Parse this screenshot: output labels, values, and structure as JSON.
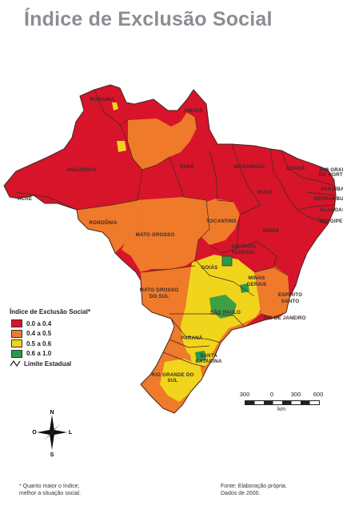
{
  "title": "Índice de Exclusão Social",
  "colors": {
    "c1": "#d7142a",
    "c2": "#ef7a2a",
    "c3": "#f0d51c",
    "c4": "#2a9a4a",
    "border": "#3d2a20",
    "title": "#8a8e93"
  },
  "legend": {
    "title": "Índice de Exclusão Social*",
    "items": [
      {
        "label": "0.0 a 0.4",
        "color": "#d7142a"
      },
      {
        "label": "0.4 a 0.5",
        "color": "#ef7a2a"
      },
      {
        "label": "0.5 a 0.6",
        "color": "#f0d51c"
      },
      {
        "label": "0.6 a 1.0",
        "color": "#2a9a4a"
      }
    ],
    "boundary_label": "Limite Estadual"
  },
  "states": [
    {
      "name": "RORAIMA"
    },
    {
      "name": "AMAPÁ"
    },
    {
      "name": "AMAZONAS"
    },
    {
      "name": "PARÁ"
    },
    {
      "name": "MARANHÃO"
    },
    {
      "name": "CEARÁ"
    },
    {
      "name": "RIO GRANDE DO NORTE"
    },
    {
      "name": "PARAÍBA"
    },
    {
      "name": "PERNAMBUCO"
    },
    {
      "name": "ALAGOAS"
    },
    {
      "name": "SERGIPE"
    },
    {
      "name": "PIAUÍ"
    },
    {
      "name": "ACRE"
    },
    {
      "name": "RONDÔNIA"
    },
    {
      "name": "TOCANTINS"
    },
    {
      "name": "BAHIA"
    },
    {
      "name": "MATO GROSSO"
    },
    {
      "name": "DISTRITO FEDERAL"
    },
    {
      "name": "GOIÁS"
    },
    {
      "name": "MINAS GERAIS"
    },
    {
      "name": "MATO GROSSO DO SUL"
    },
    {
      "name": "ESPÍRITO SANTO"
    },
    {
      "name": "SÃO PAULO"
    },
    {
      "name": "RIO DE JANEIRO"
    },
    {
      "name": "PARANÁ"
    },
    {
      "name": "SANTA CATARINA"
    },
    {
      "name": "RIO GRANDE DO SUL"
    }
  ],
  "scale": {
    "ticks": [
      "300",
      "0",
      "300",
      "600"
    ],
    "unit": "km"
  },
  "compass": {
    "n": "N",
    "s": "S",
    "e": "L",
    "w": "O"
  },
  "footnote": {
    "line1": "* Quanto maior o índice,",
    "line2": "melhor a situação social."
  },
  "source": {
    "line1": "Fonte: Elaboração própria.",
    "line2": "Dados de 2000."
  }
}
